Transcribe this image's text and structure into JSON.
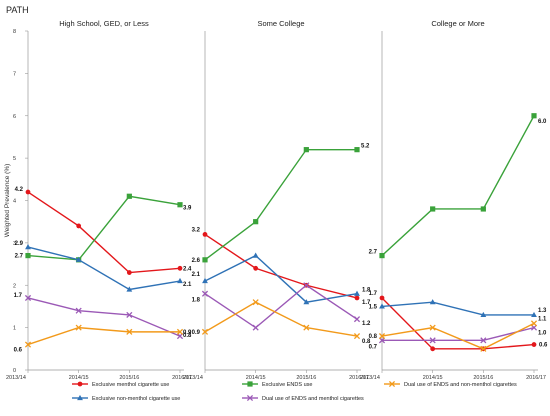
{
  "source_label": "PATH",
  "ylabel": "Weighted Prevalence (%)",
  "colors": {
    "menthol": "#e3171b",
    "ends": "#3aa23a",
    "nonmenthol": "#2f72b6",
    "dual_menthol": "#9b59b6",
    "dual_nonmenthol": "#f29a1b"
  },
  "chart_data": [
    {
      "type": "line",
      "title": "High School, GED, or Less",
      "categories": [
        "2013/14",
        "2014/15",
        "2015/16",
        "2016/17"
      ],
      "ylim": [
        0,
        8
      ],
      "yticks": [
        0,
        1,
        2,
        3,
        4,
        5,
        6,
        7,
        8
      ],
      "series": [
        {
          "key": "menthol",
          "values": [
            4.2,
            3.4,
            2.3,
            2.4
          ],
          "start_label": "4.2",
          "end_label": "2.4"
        },
        {
          "key": "ends",
          "values": [
            2.7,
            2.6,
            4.1,
            3.9
          ],
          "start_label": "2.7",
          "end_label": "3.9"
        },
        {
          "key": "nonmenthol",
          "values": [
            2.9,
            2.6,
            1.9,
            2.1
          ],
          "start_label": "2.9",
          "end_label": "2.1"
        },
        {
          "key": "dual_menthol",
          "values": [
            1.7,
            1.4,
            1.3,
            0.8
          ],
          "start_label": "1.7",
          "end_label": "0.8"
        },
        {
          "key": "dual_nonmenthol",
          "values": [
            0.6,
            1.0,
            0.9,
            0.9
          ],
          "start_label": "0.6",
          "end_label": "0.9"
        }
      ]
    },
    {
      "type": "line",
      "title": "Some College",
      "categories": [
        "2013/14",
        "2014/15",
        "2015/16",
        "2016/17"
      ],
      "ylim": [
        0,
        8
      ],
      "series": [
        {
          "key": "menthol",
          "values": [
            3.2,
            2.4,
            2.0,
            1.7
          ],
          "start_label": "3.2",
          "end_label": "1.7"
        },
        {
          "key": "ends",
          "values": [
            2.6,
            3.5,
            5.2,
            5.2
          ],
          "start_label": "2.6",
          "end_label": "5.2"
        },
        {
          "key": "nonmenthol",
          "values": [
            2.1,
            2.7,
            1.6,
            1.8
          ],
          "start_label": "2.1",
          "end_label": "1.8"
        },
        {
          "key": "dual_menthol",
          "values": [
            1.8,
            1.0,
            2.0,
            1.2
          ],
          "start_label": "1.8",
          "end_label": "1.2"
        },
        {
          "key": "dual_nonmenthol",
          "values": [
            0.9,
            1.6,
            1.0,
            0.8
          ],
          "start_label": "0.9",
          "end_label": "0.8"
        }
      ]
    },
    {
      "type": "line",
      "title": "College or More",
      "categories": [
        "2013/14",
        "2014/15",
        "2015/16",
        "2016/17"
      ],
      "ylim": [
        0,
        8
      ],
      "series": [
        {
          "key": "menthol",
          "values": [
            1.7,
            0.5,
            0.5,
            0.6
          ],
          "start_label": "1.7",
          "end_label": "0.6"
        },
        {
          "key": "ends",
          "values": [
            2.7,
            3.8,
            3.8,
            6.0
          ],
          "start_label": "2.7",
          "end_label": "6.0"
        },
        {
          "key": "nonmenthol",
          "values": [
            1.5,
            1.6,
            1.3,
            1.3
          ],
          "start_label": "1.5",
          "end_label": "1.3"
        },
        {
          "key": "dual_menthol",
          "values": [
            0.7,
            0.7,
            0.7,
            1.0
          ],
          "start_label": "0.7",
          "end_label": "1.0"
        },
        {
          "key": "dual_nonmenthol",
          "values": [
            0.8,
            1.0,
            0.5,
            1.1
          ],
          "start_label": "0.8",
          "end_label": "1.1"
        }
      ]
    }
  ],
  "legend": [
    {
      "key": "menthol",
      "label": "Exclusive menthol cigarette use",
      "marker": "circle"
    },
    {
      "key": "ends",
      "label": "Exclusive ENDS use",
      "marker": "square"
    },
    {
      "key": "dual_nonmenthol",
      "label": "Dual use of ENDS and non-menthol cigarettes",
      "marker": "x"
    },
    {
      "key": "nonmenthol",
      "label": "Exclusive non-menthol cigarette use",
      "marker": "triangle"
    },
    {
      "key": "dual_menthol",
      "label": "Dual use of ENDS and menthol cigarettes",
      "marker": "x"
    }
  ]
}
